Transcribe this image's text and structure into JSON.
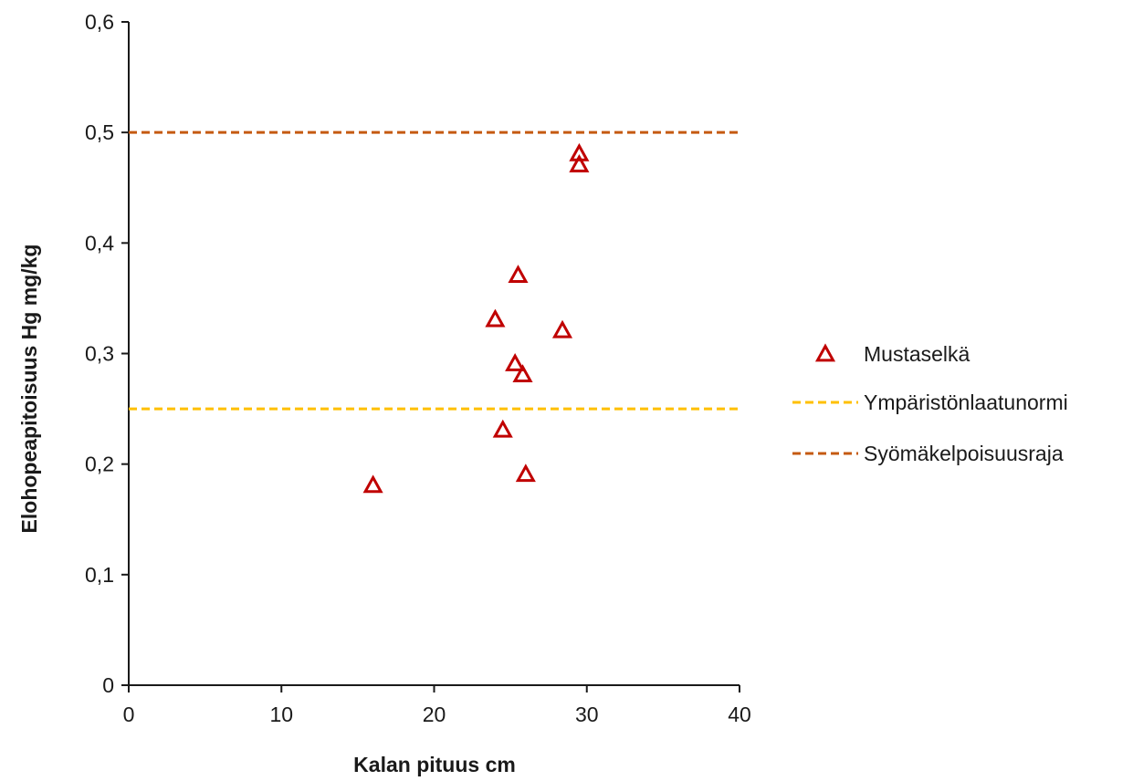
{
  "chart_data": {
    "type": "scatter",
    "xlabel": "Kalan pituus cm",
    "ylabel": "Elohopeapitoisuus  Hg mg/kg",
    "xlim": [
      0,
      40
    ],
    "ylim": [
      0,
      0.6
    ],
    "x_ticks": [
      "0",
      "10",
      "20",
      "30",
      "40"
    ],
    "y_ticks": [
      "0",
      "0,1",
      "0,2",
      "0,3",
      "0,4",
      "0,5",
      "0,6"
    ],
    "grid": false,
    "legend_position": "right",
    "series": [
      {
        "name": "Mustaselkä",
        "marker": "triangle-open",
        "color": "#C00000",
        "points": [
          {
            "x": 16.0,
            "y": 0.18
          },
          {
            "x": 24.0,
            "y": 0.33
          },
          {
            "x": 24.5,
            "y": 0.23
          },
          {
            "x": 25.3,
            "y": 0.29
          },
          {
            "x": 25.5,
            "y": 0.37
          },
          {
            "x": 25.8,
            "y": 0.28
          },
          {
            "x": 26.0,
            "y": 0.19
          },
          {
            "x": 28.4,
            "y": 0.32
          },
          {
            "x": 29.5,
            "y": 0.48
          },
          {
            "x": 29.5,
            "y": 0.47
          }
        ]
      }
    ],
    "reference_lines": [
      {
        "name": "Ympäristönlaatunormi",
        "y": 0.25,
        "color": "#FFC000",
        "style": "dashed"
      },
      {
        "name": "Syömäkelpoisuusraja",
        "y": 0.5,
        "color": "#C55A11",
        "style": "dashed"
      }
    ]
  }
}
